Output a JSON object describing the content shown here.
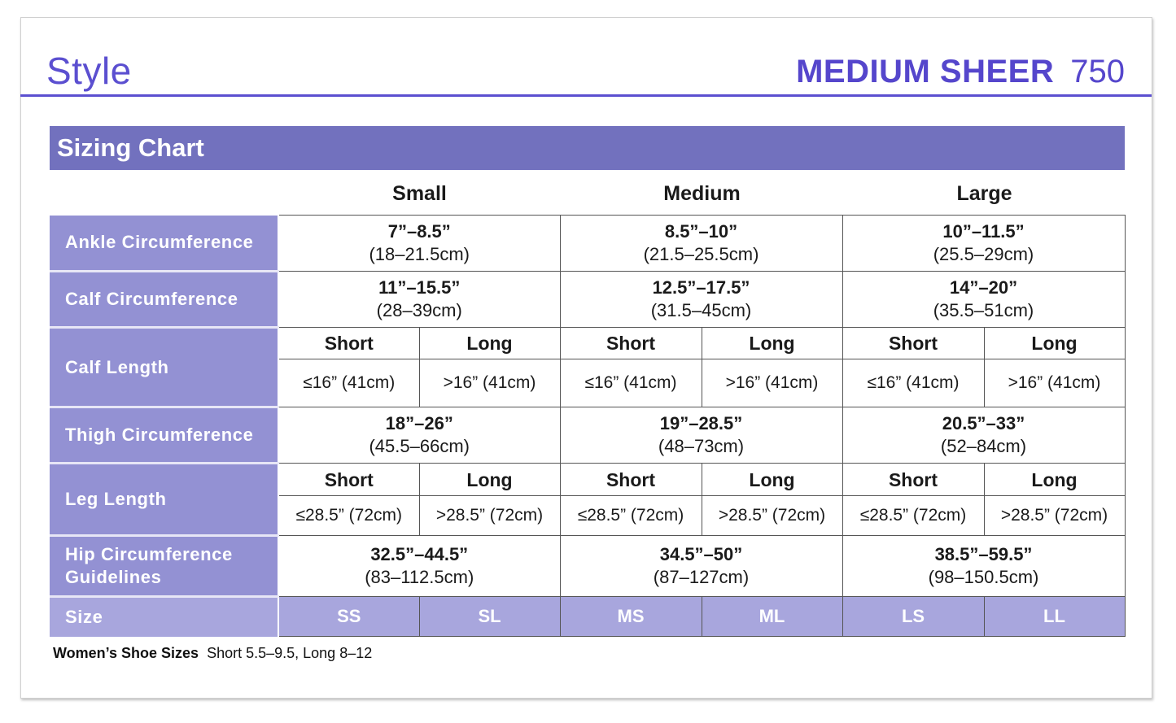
{
  "header": {
    "style_label": "Style",
    "product_name": "MEDIUM SHEER",
    "product_number": "750"
  },
  "section_title": "Sizing Chart",
  "size_groups": [
    "Small",
    "Medium",
    "Large"
  ],
  "rows": {
    "ankle": {
      "label": "Ankle Circumference",
      "values": [
        {
          "in": "7”–8.5”",
          "cm": "(18–21.5cm)"
        },
        {
          "in": "8.5”–10”",
          "cm": "(21.5–25.5cm)"
        },
        {
          "in": "10”–11.5”",
          "cm": "(25.5–29cm)"
        }
      ]
    },
    "calf_circ": {
      "label": "Calf Circumference",
      "values": [
        {
          "in": "11”–15.5”",
          "cm": "(28–39cm)"
        },
        {
          "in": "12.5”–17.5”",
          "cm": "(31.5–45cm)"
        },
        {
          "in": "14”–20”",
          "cm": "(35.5–51cm)"
        }
      ]
    },
    "calf_length": {
      "label": "Calf Length",
      "subheads": [
        "Short",
        "Long",
        "Short",
        "Long",
        "Short",
        "Long"
      ],
      "values": [
        "≤16” (41cm)",
        ">16” (41cm)",
        "≤16” (41cm)",
        ">16” (41cm)",
        "≤16” (41cm)",
        ">16” (41cm)"
      ]
    },
    "thigh": {
      "label": "Thigh Circumference",
      "values": [
        {
          "in": "18”–26”",
          "cm": "(45.5–66cm)"
        },
        {
          "in": "19”–28.5”",
          "cm": "(48–73cm)"
        },
        {
          "in": "20.5”–33”",
          "cm": "(52–84cm)"
        }
      ]
    },
    "leg_length": {
      "label": "Leg Length",
      "subheads": [
        "Short",
        "Long",
        "Short",
        "Long",
        "Short",
        "Long"
      ],
      "values": [
        "≤28.5” (72cm)",
        ">28.5” (72cm)",
        "≤28.5” (72cm)",
        ">28.5” (72cm)",
        "≤28.5” (72cm)",
        ">28.5” (72cm)"
      ]
    },
    "hip": {
      "label": "Hip Circumference Guidelines",
      "values": [
        {
          "in": "32.5”–44.5”",
          "cm": "(83–112.5cm)"
        },
        {
          "in": "34.5”–50”",
          "cm": "(87–127cm)"
        },
        {
          "in": "38.5”–59.5”",
          "cm": "(98–150.5cm)"
        }
      ]
    },
    "size": {
      "label": "Size",
      "values": [
        "SS",
        "SL",
        "MS",
        "ML",
        "LS",
        "LL"
      ]
    }
  },
  "footer": {
    "label": "Women’s Shoe Sizes",
    "text": "Short 5.5–9.5, Long  8–12"
  },
  "colors": {
    "accent": "#5b4fd0",
    "band": "#7271be",
    "label_cell": "#9391d3",
    "size_row": "#a8a6dd"
  }
}
